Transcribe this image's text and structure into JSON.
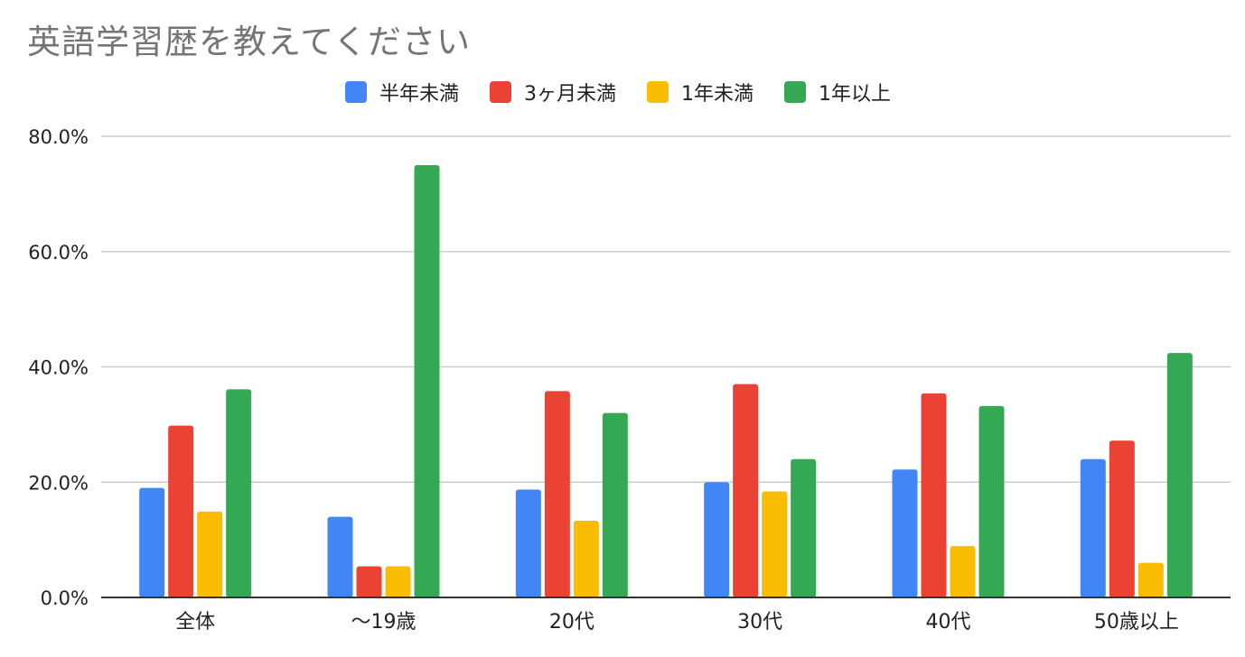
{
  "chart_data": {
    "type": "bar",
    "title": "英語学習歴を教えてください",
    "xlabel": "",
    "ylabel": "",
    "categories": [
      "全体",
      "〜19歳",
      "20代",
      "30代",
      "40代",
      "50歳以上"
    ],
    "series": [
      {
        "name": "半年未満",
        "color": "#4285F4",
        "values": [
          19.0,
          14.0,
          18.7,
          20.0,
          22.2,
          24.0
        ]
      },
      {
        "name": "3ヶ月未満",
        "color": "#EA4335",
        "values": [
          29.8,
          5.4,
          35.8,
          37.0,
          35.4,
          27.2
        ]
      },
      {
        "name": "1年未満",
        "color": "#FBBC04",
        "values": [
          14.9,
          5.4,
          13.3,
          18.4,
          8.9,
          6.0
        ]
      },
      {
        "name": "1年以上",
        "color": "#34A853",
        "values": [
          36.1,
          75.0,
          32.0,
          24.0,
          33.2,
          42.4
        ]
      }
    ],
    "yticks": [
      "0.0%",
      "20.0%",
      "40.0%",
      "60.0%",
      "80.0%"
    ],
    "ylim": [
      0,
      80
    ],
    "grid": true,
    "legend_position": "top"
  }
}
